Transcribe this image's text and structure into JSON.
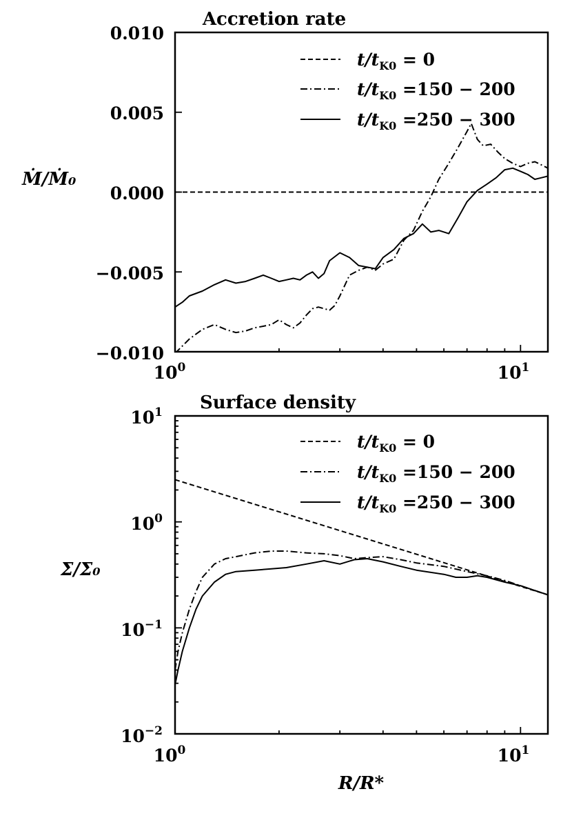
{
  "chart_data": [
    {
      "type": "line",
      "title": "Accretion rate",
      "xlabel": "",
      "ylabel": "Ṁ/Ṁ₀",
      "xscale": "log",
      "yscale": "linear",
      "xlim": [
        1,
        12
      ],
      "ylim": [
        -0.01,
        0.01
      ],
      "yticks": [
        "0.010",
        "0.005",
        "0.000",
        "−0.005",
        "−0.010"
      ],
      "ytick_values": [
        0.01,
        0.005,
        0.0,
        -0.005,
        -0.01
      ],
      "xticks": [
        {
          "base": "10",
          "exp": "0",
          "value": 1
        },
        {
          "base": "10",
          "exp": "1",
          "value": 10
        }
      ],
      "legend_position": "top-right",
      "series": [
        {
          "name": "t/tK0 = 0",
          "label_main": "t/t",
          "label_sub": "K0",
          "label_rest": " = 0",
          "style": "dashed",
          "x": [
            1,
            12
          ],
          "y": [
            0.0,
            0.0
          ]
        },
        {
          "name": "t/tK0 =150 − 200",
          "label_main": "t/t",
          "label_sub": "K0",
          "label_rest": " =150 − 200",
          "style": "dashdot",
          "x": [
            1.0,
            1.1,
            1.2,
            1.3,
            1.4,
            1.5,
            1.6,
            1.7,
            1.8,
            1.9,
            2.0,
            2.1,
            2.2,
            2.3,
            2.4,
            2.5,
            2.6,
            2.7,
            2.8,
            2.9,
            3.0,
            3.2,
            3.4,
            3.6,
            3.8,
            4.0,
            4.3,
            4.6,
            4.9,
            5.2,
            5.5,
            5.8,
            6.2,
            6.6,
            7.0,
            7.2,
            7.5,
            7.8,
            8.2,
            8.6,
            9.0,
            9.5,
            10.0,
            10.5,
            11.0,
            11.5,
            12.0
          ],
          "y": [
            -0.0101,
            -0.0092,
            -0.0086,
            -0.0083,
            -0.0086,
            -0.0088,
            -0.0087,
            -0.0085,
            -0.0084,
            -0.0083,
            -0.008,
            -0.0083,
            -0.0085,
            -0.0082,
            -0.0077,
            -0.0073,
            -0.0072,
            -0.0073,
            -0.0074,
            -0.0071,
            -0.0065,
            -0.0052,
            -0.0049,
            -0.0047,
            -0.0049,
            -0.0045,
            -0.0042,
            -0.003,
            -0.0024,
            -0.0012,
            -0.0003,
            0.0008,
            0.0018,
            0.0028,
            0.0038,
            0.0043,
            0.0033,
            0.0029,
            0.003,
            0.0025,
            0.0021,
            0.0018,
            0.0016,
            0.0018,
            0.0019,
            0.0017,
            0.0015
          ]
        },
        {
          "name": "t/tK0 =250 − 300",
          "label_main": "t/t",
          "label_sub": "K0",
          "label_rest": " =250 − 300",
          "style": "solid",
          "x": [
            1.0,
            1.05,
            1.1,
            1.2,
            1.3,
            1.4,
            1.5,
            1.6,
            1.7,
            1.8,
            1.9,
            2.0,
            2.1,
            2.2,
            2.3,
            2.4,
            2.5,
            2.6,
            2.7,
            2.8,
            3.0,
            3.2,
            3.4,
            3.6,
            3.8,
            4.0,
            4.3,
            4.6,
            4.9,
            5.2,
            5.5,
            5.8,
            6.2,
            6.6,
            7.0,
            7.5,
            8.0,
            8.5,
            9.0,
            9.5,
            10.0,
            10.5,
            11.0,
            11.5,
            12.0
          ],
          "y": [
            -0.0072,
            -0.0069,
            -0.0065,
            -0.0062,
            -0.0058,
            -0.0055,
            -0.0057,
            -0.0056,
            -0.0054,
            -0.0052,
            -0.0054,
            -0.0056,
            -0.0055,
            -0.0054,
            -0.0055,
            -0.0052,
            -0.005,
            -0.0054,
            -0.0051,
            -0.0043,
            -0.0038,
            -0.0041,
            -0.0046,
            -0.0047,
            -0.0048,
            -0.0041,
            -0.0036,
            -0.0029,
            -0.0026,
            -0.002,
            -0.0025,
            -0.0024,
            -0.0026,
            -0.0016,
            -0.0006,
            0.0001,
            0.0005,
            0.0009,
            0.0014,
            0.0015,
            0.0013,
            0.0011,
            0.0008,
            0.0009,
            0.001
          ]
        }
      ]
    },
    {
      "type": "line",
      "title": "Surface density",
      "xlabel": "R/R*",
      "ylabel": "Σ/Σ₀",
      "xscale": "log",
      "yscale": "log",
      "xlim": [
        1,
        12
      ],
      "ylim": [
        0.01,
        10
      ],
      "yticks": [
        {
          "base": "10",
          "exp": "1",
          "value": 10
        },
        {
          "base": "10",
          "exp": "0",
          "value": 1
        },
        {
          "base": "10",
          "exp": "−1",
          "value": 0.1
        },
        {
          "base": "10",
          "exp": "−2",
          "value": 0.01
        }
      ],
      "xticks": [
        {
          "base": "10",
          "exp": "0",
          "value": 1
        },
        {
          "base": "10",
          "exp": "1",
          "value": 10
        }
      ],
      "legend_position": "top-right",
      "series": [
        {
          "name": "t/tK0 = 0",
          "label_main": "t/t",
          "label_sub": "K0",
          "label_rest": " = 0",
          "style": "dashed",
          "x": [
            1,
            12
          ],
          "y": [
            2.5,
            0.205
          ]
        },
        {
          "name": "t/tK0 =150 − 200",
          "label_main": "t/t",
          "label_sub": "K0",
          "label_rest": " =150 − 200",
          "style": "dashdot",
          "x": [
            1.0,
            1.02,
            1.05,
            1.1,
            1.15,
            1.2,
            1.3,
            1.4,
            1.5,
            1.7,
            1.9,
            2.1,
            2.4,
            2.7,
            3.0,
            3.3,
            3.6,
            4.0,
            4.5,
            5.0,
            6.0,
            7.0,
            8.0,
            9.0,
            10.0,
            11.0,
            12.0
          ],
          "y": [
            0.04,
            0.06,
            0.09,
            0.15,
            0.22,
            0.3,
            0.4,
            0.45,
            0.47,
            0.51,
            0.53,
            0.53,
            0.51,
            0.5,
            0.48,
            0.45,
            0.46,
            0.47,
            0.44,
            0.41,
            0.38,
            0.34,
            0.31,
            0.28,
            0.25,
            0.225,
            0.205
          ]
        },
        {
          "name": "t/tK0 =250 − 300",
          "label_main": "t/t",
          "label_sub": "K0",
          "label_rest": " =250 − 300",
          "style": "solid",
          "x": [
            1.0,
            1.02,
            1.05,
            1.1,
            1.15,
            1.2,
            1.3,
            1.4,
            1.5,
            1.7,
            1.9,
            2.1,
            2.4,
            2.7,
            3.0,
            3.3,
            3.6,
            4.0,
            4.5,
            5.0,
            6.0,
            6.5,
            7.0,
            7.5,
            8.0,
            9.0,
            10.0,
            11.0,
            12.0
          ],
          "y": [
            0.029,
            0.04,
            0.06,
            0.1,
            0.15,
            0.2,
            0.27,
            0.32,
            0.34,
            0.35,
            0.36,
            0.37,
            0.4,
            0.43,
            0.4,
            0.44,
            0.45,
            0.42,
            0.38,
            0.35,
            0.32,
            0.3,
            0.3,
            0.31,
            0.3,
            0.27,
            0.25,
            0.225,
            0.205
          ]
        }
      ]
    }
  ]
}
